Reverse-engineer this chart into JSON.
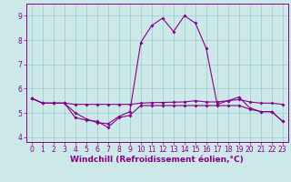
{
  "xlabel": "Windchill (Refroidissement éolien,°C)",
  "background_color": "#cce8e8",
  "line_color": "#880088",
  "xlim": [
    -0.5,
    23.5
  ],
  "ylim": [
    3.8,
    9.5
  ],
  "yticks": [
    4,
    5,
    6,
    7,
    8,
    9
  ],
  "xticks": [
    0,
    1,
    2,
    3,
    4,
    5,
    6,
    7,
    8,
    9,
    10,
    11,
    12,
    13,
    14,
    15,
    16,
    17,
    18,
    19,
    20,
    21,
    22,
    23
  ],
  "line1_x": [
    0,
    1,
    2,
    3,
    4,
    5,
    6,
    7,
    8,
    9,
    10,
    11,
    12,
    13,
    14,
    15,
    16,
    17,
    18,
    19,
    20,
    21,
    22,
    23
  ],
  "line1_y": [
    5.6,
    5.4,
    5.4,
    5.4,
    4.8,
    4.7,
    4.65,
    4.4,
    4.8,
    4.9,
    5.3,
    5.3,
    5.3,
    5.3,
    5.3,
    5.3,
    5.3,
    5.3,
    5.3,
    5.3,
    5.15,
    5.05,
    5.05,
    4.65
  ],
  "line2_x": [
    0,
    1,
    2,
    3,
    4,
    5,
    6,
    7,
    8,
    9,
    10,
    11,
    12,
    13,
    14,
    15,
    16,
    17,
    18,
    19,
    20,
    21,
    22,
    23
  ],
  "line2_y": [
    5.6,
    5.4,
    5.4,
    5.4,
    5.35,
    5.35,
    5.35,
    5.35,
    5.35,
    5.35,
    5.4,
    5.42,
    5.43,
    5.44,
    5.45,
    5.5,
    5.45,
    5.45,
    5.5,
    5.55,
    5.45,
    5.4,
    5.4,
    5.35
  ],
  "line3_x": [
    0,
    1,
    2,
    3,
    4,
    5,
    6,
    7,
    8,
    9,
    10,
    11,
    12,
    13,
    14,
    15,
    16,
    17,
    18,
    19,
    20,
    21,
    22,
    23
  ],
  "line3_y": [
    5.6,
    5.4,
    5.4,
    5.4,
    5.0,
    4.75,
    4.6,
    4.55,
    4.85,
    5.05,
    7.9,
    8.6,
    8.9,
    8.35,
    9.0,
    8.7,
    7.65,
    5.35,
    5.5,
    5.65,
    5.2,
    5.05,
    5.05,
    4.65
  ],
  "grid_color": "#99cccc",
  "tick_fontsize": 5.5,
  "xlabel_fontsize": 6.5
}
